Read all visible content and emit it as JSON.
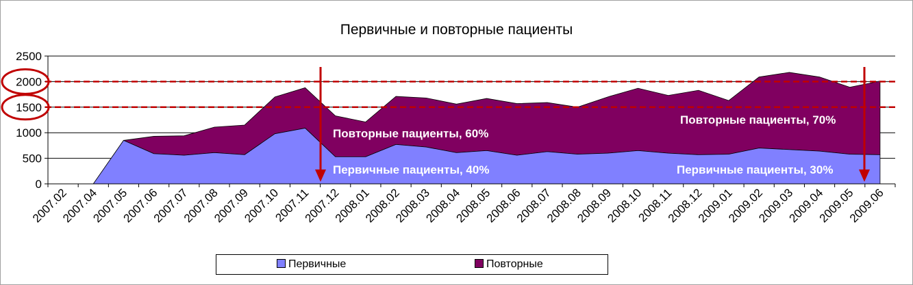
{
  "chart_data": {
    "type": "area",
    "title": "Первичные и повторные пациенты",
    "stacked": true,
    "categories": [
      "2007.02",
      "2007.04",
      "2007.05",
      "2007.06",
      "2007.07",
      "2007.08",
      "2007.09",
      "2007.10",
      "2007.11",
      "2007.12",
      "2008.01",
      "2008.02",
      "2008.03",
      "2008.04",
      "2008.05",
      "2008.06",
      "2008.07",
      "2008.08",
      "2008.09",
      "2008.10",
      "2008.11",
      "2008.12",
      "2009.01",
      "2009.02",
      "2009.03",
      "2009.04",
      "2009.05",
      "2009.06"
    ],
    "series": [
      {
        "name": "Первичные",
        "color": "#8080ff",
        "values": [
          0,
          0,
          850,
          590,
          560,
          610,
          570,
          980,
          1090,
          530,
          530,
          770,
          720,
          610,
          650,
          560,
          630,
          580,
          600,
          650,
          600,
          570,
          580,
          700,
          670,
          640,
          580,
          570
        ]
      },
      {
        "name": "Повторные",
        "color": "#800060",
        "values": [
          0,
          0,
          0,
          340,
          380,
          500,
          580,
          720,
          790,
          800,
          680,
          940,
          960,
          950,
          1020,
          1010,
          960,
          920,
          1100,
          1220,
          1130,
          1260,
          1050,
          1390,
          1510,
          1450,
          1310,
          1440
        ]
      }
    ],
    "ylim": [
      0,
      2500
    ],
    "yticks": [
      "0",
      "500",
      "1000",
      "1500",
      "2000",
      "2500"
    ],
    "grid": true,
    "legend_position": "bottom",
    "annotations": {
      "repeat_left": "Повторные пациенты, 60%",
      "primary_left": "Первичные пациенты, 40%",
      "repeat_right": "Повторные пациенты, 70%",
      "primary_right": "Первичные пациенты, 30%"
    },
    "reference_lines": [
      2000,
      1500
    ],
    "marker_color": "#c00000"
  }
}
